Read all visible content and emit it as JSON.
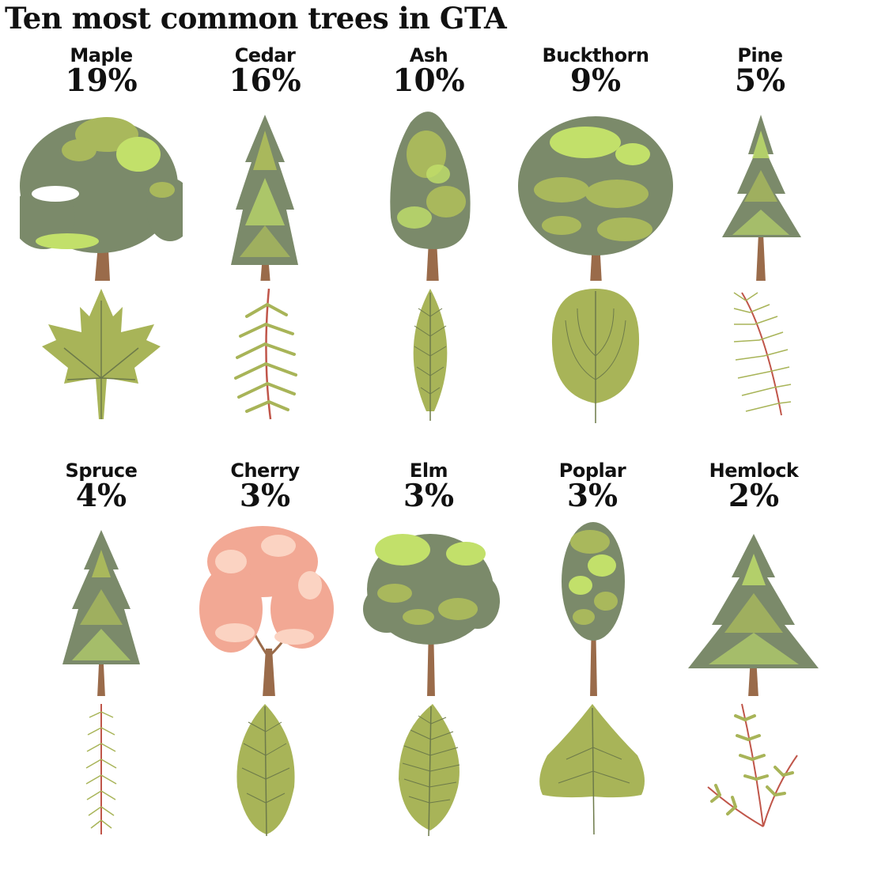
{
  "title": "Ten most common trees in GTA",
  "trees": [
    {
      "name": "Maple",
      "percent": "19%",
      "share": 19,
      "tree_icon": "maple-tree-icon",
      "leaf_icon": "maple-leaf-icon"
    },
    {
      "name": "Cedar",
      "percent": "16%",
      "share": 16,
      "tree_icon": "cedar-tree-icon",
      "leaf_icon": "cedar-leaf-icon"
    },
    {
      "name": "Ash",
      "percent": "10%",
      "share": 10,
      "tree_icon": "ash-tree-icon",
      "leaf_icon": "ash-leaf-icon"
    },
    {
      "name": "Buckthorn",
      "percent": "9%",
      "share": 9,
      "tree_icon": "buckthorn-tree-icon",
      "leaf_icon": "buckthorn-leaf-icon"
    },
    {
      "name": "Pine",
      "percent": "5%",
      "share": 5,
      "tree_icon": "pine-tree-icon",
      "leaf_icon": "pine-needle-icon"
    },
    {
      "name": "Spruce",
      "percent": "4%",
      "share": 4,
      "tree_icon": "spruce-tree-icon",
      "leaf_icon": "spruce-needle-icon"
    },
    {
      "name": "Cherry",
      "percent": "3%",
      "share": 3,
      "tree_icon": "cherry-tree-icon",
      "leaf_icon": "cherry-leaf-icon"
    },
    {
      "name": "Elm",
      "percent": "3%",
      "share": 3,
      "tree_icon": "elm-tree-icon",
      "leaf_icon": "elm-leaf-icon"
    },
    {
      "name": "Poplar",
      "percent": "3%",
      "share": 3,
      "tree_icon": "poplar-tree-icon",
      "leaf_icon": "poplar-leaf-icon"
    },
    {
      "name": "Hemlock",
      "percent": "2%",
      "share": 2,
      "tree_icon": "hemlock-tree-icon",
      "leaf_icon": "hemlock-leaf-icon"
    }
  ],
  "colors": {
    "foliage_dark": "#7b8a6a",
    "foliage_mid": "#a9b85c",
    "foliage_light": "#c2e06a",
    "trunk": "#9a6b4a",
    "leaf": "#a8b458",
    "vein": "#6d7a4a",
    "stem_red": "#c0564a",
    "blossom": "#f2a894",
    "blossom_light": "#fbd3c2"
  }
}
